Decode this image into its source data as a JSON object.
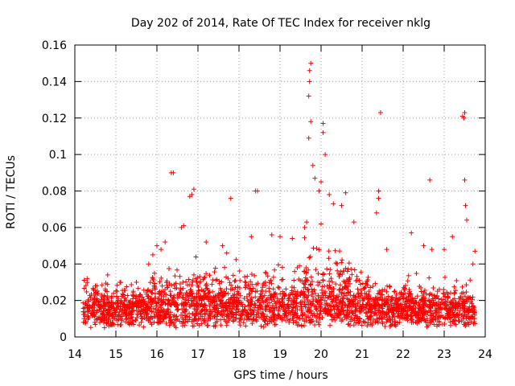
{
  "chart_data": {
    "type": "scatter",
    "title": "Day 202 of 2014, Rate Of TEC Index for receiver nklg",
    "xlabel": "GPS time / hours",
    "ylabel": "ROTI / TECUs",
    "xlim": [
      14,
      24
    ],
    "ylim": [
      0,
      0.16
    ],
    "x_ticks": [
      14,
      15,
      16,
      17,
      18,
      19,
      20,
      21,
      22,
      23,
      24
    ],
    "x_tick_labels": [
      "14",
      "15",
      "16",
      "17",
      "18",
      "19",
      "20",
      "21",
      "22",
      "23",
      "24"
    ],
    "y_ticks": [
      0,
      0.02,
      0.04,
      0.06,
      0.08,
      0.1,
      0.12,
      0.14,
      0.16
    ],
    "y_tick_labels": [
      "0",
      "0.02",
      "0.04",
      "0.06",
      "0.08",
      "0.1",
      "0.12",
      "0.14",
      "0.16"
    ],
    "grid": true,
    "marker": "+",
    "color": "#ff0000",
    "x_data_range": [
      14.2,
      23.75
    ],
    "series": [
      {
        "name": "ROTI",
        "x": [
          14.3,
          14.5,
          14.8,
          15.1,
          15.5,
          15.8,
          15.9,
          16.0,
          16.1,
          16.2,
          16.35,
          16.4,
          16.6,
          16.65,
          16.8,
          16.85,
          16.9,
          17.2,
          17.6,
          17.7,
          17.8,
          18.3,
          18.4,
          18.45,
          18.8,
          19.0,
          19.3,
          19.6,
          19.65,
          19.7,
          19.7,
          19.72,
          19.72,
          19.75,
          19.75,
          19.8,
          19.85,
          19.95,
          20.0,
          20.0,
          20.05,
          20.05,
          20.1,
          20.2,
          20.3,
          20.5,
          20.6,
          20.8,
          21.35,
          21.4,
          21.4,
          21.45,
          21.6,
          22.2,
          22.5,
          22.65,
          22.7,
          23.0,
          23.2,
          23.45,
          23.48,
          23.5,
          23.5,
          23.52,
          23.55,
          23.7,
          23.75
        ],
        "y": [
          0.032,
          0.028,
          0.034,
          0.03,
          0.03,
          0.04,
          0.045,
          0.05,
          0.048,
          0.052,
          0.09,
          0.09,
          0.06,
          0.061,
          0.077,
          0.078,
          0.081,
          0.052,
          0.05,
          0.046,
          0.076,
          0.055,
          0.08,
          0.08,
          0.056,
          0.055,
          0.054,
          0.06,
          0.063,
          0.109,
          0.132,
          0.14,
          0.146,
          0.15,
          0.118,
          0.094,
          0.087,
          0.08,
          0.085,
          0.062,
          0.112,
          0.117,
          0.1,
          0.078,
          0.073,
          0.072,
          0.079,
          0.063,
          0.068,
          0.076,
          0.08,
          0.123,
          0.048,
          0.057,
          0.05,
          0.086,
          0.048,
          0.048,
          0.055,
          0.121,
          0.12,
          0.123,
          0.086,
          0.072,
          0.064,
          0.04,
          0.047
        ]
      }
    ],
    "background_band": {
      "description": "dense cloud of points across the full time range",
      "x_range": [
        14.2,
        23.75
      ],
      "typical_range": [
        0.005,
        0.03
      ]
    }
  }
}
